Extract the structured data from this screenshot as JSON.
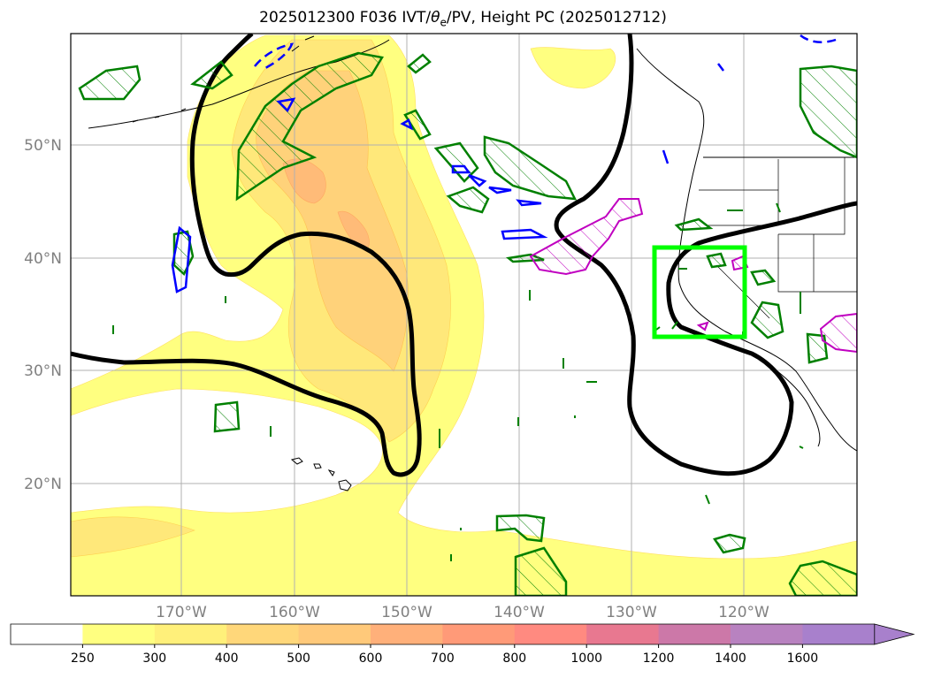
{
  "title": {
    "prefix": "2025012300 F036 IVT/",
    "theta": "θ",
    "theta_sub": "e",
    "suffix": "/PV, Height PC (2025012712)"
  },
  "map": {
    "lon_labels": [
      "170°W",
      "160°W",
      "150°W",
      "140°W",
      "130°W",
      "120°W"
    ],
    "lat_labels": [
      "50°N",
      "40°N",
      "30°N",
      "20°N"
    ],
    "gridlines": true,
    "target_box_color": "#00ff00",
    "colors": {
      "height_contour": "#000000",
      "pv_positive": "#008000",
      "pv_negative": "#0000ff",
      "theta_e": "#c000c0"
    }
  },
  "colorbar": {
    "levels": [
      "250",
      "300",
      "400",
      "500",
      "600",
      "700",
      "800",
      "1000",
      "1200",
      "1400",
      "1600"
    ],
    "colors": [
      "#ffffff",
      "#ffff80",
      "#fff07a",
      "#ffd77a",
      "#ffc97a",
      "#ffb07a",
      "#ff9a78",
      "#ff8a80",
      "#e87890",
      "#cc78a8",
      "#b882c0",
      "#a880cc"
    ],
    "extend": "max"
  }
}
